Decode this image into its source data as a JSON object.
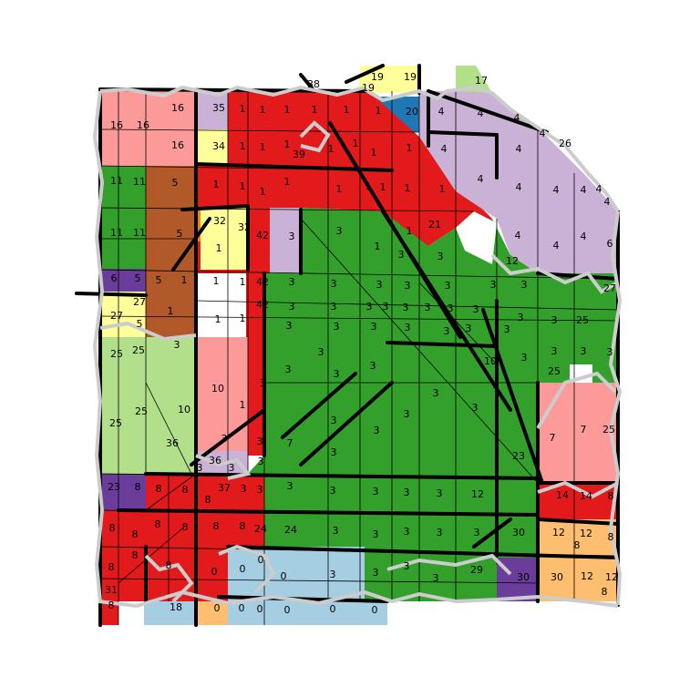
{
  "map": {
    "legend_colors": {
      "red": "#e31a1c",
      "green": "#33a02c",
      "light_green": "#b2df8a",
      "pink": "#fb9a99",
      "lavender": "#cab2d6",
      "yellow": "#ffff99",
      "brown": "#b15928",
      "orange": "#ff7f00",
      "light_orange": "#fdbf6f",
      "light_blue": "#a6cee3",
      "blue": "#1f78b4",
      "purple": "#6a3d9a",
      "boundary": "#cccccc"
    },
    "labels": [
      {
        "id": "l1",
        "text": "38"
      },
      {
        "id": "l2",
        "text": "19"
      },
      {
        "id": "l3",
        "text": "19"
      },
      {
        "id": "l4",
        "text": "19"
      },
      {
        "id": "l5",
        "text": "17"
      },
      {
        "id": "l6",
        "text": "16"
      },
      {
        "id": "l7",
        "text": "16"
      },
      {
        "id": "l8",
        "text": "16"
      },
      {
        "id": "l9",
        "text": "35"
      },
      {
        "id": "l10",
        "text": "1"
      },
      {
        "id": "l11",
        "text": "1"
      },
      {
        "id": "l12",
        "text": "1"
      },
      {
        "id": "l13",
        "text": "1"
      },
      {
        "id": "l14",
        "text": "1"
      },
      {
        "id": "l15",
        "text": "1"
      },
      {
        "id": "l16",
        "text": "20"
      },
      {
        "id": "l17",
        "text": "4"
      },
      {
        "id": "l18",
        "text": "4"
      },
      {
        "id": "l19",
        "text": "4"
      },
      {
        "id": "l20",
        "text": "4"
      },
      {
        "id": "l21",
        "text": "16"
      },
      {
        "id": "l22",
        "text": "34"
      },
      {
        "id": "l23",
        "text": "1"
      },
      {
        "id": "l24",
        "text": "1"
      },
      {
        "id": "l25",
        "text": "1"
      },
      {
        "id": "l26",
        "text": "39"
      },
      {
        "id": "l27",
        "text": "1"
      },
      {
        "id": "l28",
        "text": "1"
      },
      {
        "id": "l29",
        "text": "1"
      },
      {
        "id": "l30",
        "text": "1"
      },
      {
        "id": "l31",
        "text": "4"
      },
      {
        "id": "l32",
        "text": "4"
      },
      {
        "id": "l33",
        "text": "26"
      },
      {
        "id": "l34",
        "text": "11"
      },
      {
        "id": "l35",
        "text": "11"
      },
      {
        "id": "l36",
        "text": "5"
      },
      {
        "id": "l37",
        "text": "1"
      },
      {
        "id": "l38",
        "text": "1"
      },
      {
        "id": "l39",
        "text": "1"
      },
      {
        "id": "l40",
        "text": "1"
      },
      {
        "id": "l41",
        "text": "1"
      },
      {
        "id": "l42",
        "text": "1"
      },
      {
        "id": "l43",
        "text": "1"
      },
      {
        "id": "l44",
        "text": "1"
      },
      {
        "id": "l45",
        "text": "1"
      },
      {
        "id": "l46",
        "text": "4"
      },
      {
        "id": "l47",
        "text": "4"
      },
      {
        "id": "l48",
        "text": "4"
      },
      {
        "id": "l49",
        "text": "4"
      },
      {
        "id": "l50",
        "text": "4"
      },
      {
        "id": "l51",
        "text": "4"
      },
      {
        "id": "l52",
        "text": "11"
      },
      {
        "id": "l53",
        "text": "11"
      },
      {
        "id": "l54",
        "text": "5"
      },
      {
        "id": "l55",
        "text": "32"
      },
      {
        "id": "l56",
        "text": "32"
      },
      {
        "id": "l57",
        "text": "1"
      },
      {
        "id": "l58",
        "text": "42"
      },
      {
        "id": "l59",
        "text": "3"
      },
      {
        "id": "l60",
        "text": "3"
      },
      {
        "id": "l61",
        "text": "1"
      },
      {
        "id": "l62",
        "text": "1"
      },
      {
        "id": "l63",
        "text": "21"
      },
      {
        "id": "l64",
        "text": "4"
      },
      {
        "id": "l65",
        "text": "4"
      },
      {
        "id": "l66",
        "text": "4"
      },
      {
        "id": "l67",
        "text": "6"
      },
      {
        "id": "l68",
        "text": "6"
      },
      {
        "id": "l69",
        "text": "5"
      },
      {
        "id": "l70",
        "text": "5"
      },
      {
        "id": "l71",
        "text": "1"
      },
      {
        "id": "l72",
        "text": "1"
      },
      {
        "id": "l73",
        "text": "1"
      },
      {
        "id": "l74",
        "text": "42"
      },
      {
        "id": "l75",
        "text": "3"
      },
      {
        "id": "l76",
        "text": "3"
      },
      {
        "id": "l77",
        "text": "3"
      },
      {
        "id": "l78",
        "text": "3"
      },
      {
        "id": "l79",
        "text": "3"
      },
      {
        "id": "l80",
        "text": "3"
      },
      {
        "id": "l81",
        "text": "3"
      },
      {
        "id": "l82",
        "text": "27"
      },
      {
        "id": "l83",
        "text": "27"
      },
      {
        "id": "l84",
        "text": "27"
      },
      {
        "id": "l85",
        "text": "5"
      },
      {
        "id": "l86",
        "text": "1"
      },
      {
        "id": "l87",
        "text": "1"
      },
      {
        "id": "l88",
        "text": "1"
      },
      {
        "id": "l89",
        "text": "42"
      },
      {
        "id": "l90",
        "text": "3"
      },
      {
        "id": "l91",
        "text": "3"
      },
      {
        "id": "l92",
        "text": "3"
      },
      {
        "id": "l93",
        "text": "3"
      },
      {
        "id": "l94",
        "text": "3"
      },
      {
        "id": "l95",
        "text": "3"
      },
      {
        "id": "l96",
        "text": "3"
      },
      {
        "id": "l97",
        "text": "3"
      },
      {
        "id": "l98",
        "text": "3"
      },
      {
        "id": "l99",
        "text": "3"
      },
      {
        "id": "l100",
        "text": "25"
      },
      {
        "id": "l101",
        "text": "25"
      },
      {
        "id": "l102",
        "text": "25"
      },
      {
        "id": "l103",
        "text": "3"
      },
      {
        "id": "l104",
        "text": "3"
      },
      {
        "id": "l105",
        "text": "3"
      },
      {
        "id": "l106",
        "text": "3"
      },
      {
        "id": "l107",
        "text": "3"
      },
      {
        "id": "l108",
        "text": "3"
      },
      {
        "id": "l109",
        "text": "3"
      },
      {
        "id": "l110",
        "text": "3"
      },
      {
        "id": "l111",
        "text": "3"
      },
      {
        "id": "l112",
        "text": "3"
      },
      {
        "id": "l113",
        "text": "3"
      },
      {
        "id": "l114",
        "text": "3"
      },
      {
        "id": "l115",
        "text": "10"
      },
      {
        "id": "l116",
        "text": "10"
      },
      {
        "id": "l117",
        "text": "1"
      },
      {
        "id": "l118",
        "text": "3"
      },
      {
        "id": "l119",
        "text": "3"
      },
      {
        "id": "l120",
        "text": "3"
      },
      {
        "id": "l121",
        "text": "3"
      },
      {
        "id": "l122",
        "text": "3"
      },
      {
        "id": "l123",
        "text": "3"
      },
      {
        "id": "l124",
        "text": "25"
      },
      {
        "id": "l125",
        "text": "25"
      },
      {
        "id": "l126",
        "text": "25"
      },
      {
        "id": "l127",
        "text": "10"
      },
      {
        "id": "l128",
        "text": "3"
      },
      {
        "id": "l129",
        "text": "3"
      },
      {
        "id": "l130",
        "text": "3"
      },
      {
        "id": "l131",
        "text": "3"
      },
      {
        "id": "l132",
        "text": "3"
      },
      {
        "id": "l133",
        "text": "7"
      },
      {
        "id": "l134",
        "text": "7"
      },
      {
        "id": "l135",
        "text": "7"
      },
      {
        "id": "l136",
        "text": "25"
      },
      {
        "id": "l137",
        "text": "36"
      },
      {
        "id": "l138",
        "text": "36"
      },
      {
        "id": "l139",
        "text": "3"
      },
      {
        "id": "l140",
        "text": "3"
      },
      {
        "id": "l141",
        "text": "3"
      },
      {
        "id": "l142",
        "text": "3"
      },
      {
        "id": "l143",
        "text": "23"
      },
      {
        "id": "l144",
        "text": "23"
      },
      {
        "id": "l145",
        "text": "8"
      },
      {
        "id": "l146",
        "text": "8"
      },
      {
        "id": "l147",
        "text": "8"
      },
      {
        "id": "l148",
        "text": "8"
      },
      {
        "id": "l149",
        "text": "37"
      },
      {
        "id": "l150",
        "text": "3"
      },
      {
        "id": "l151",
        "text": "3"
      },
      {
        "id": "l152",
        "text": "3"
      },
      {
        "id": "l153",
        "text": "3"
      },
      {
        "id": "l154",
        "text": "3"
      },
      {
        "id": "l155",
        "text": "3"
      },
      {
        "id": "l156",
        "text": "3"
      },
      {
        "id": "l157",
        "text": "12"
      },
      {
        "id": "l158",
        "text": "14"
      },
      {
        "id": "l159",
        "text": "14"
      },
      {
        "id": "l160",
        "text": "8"
      },
      {
        "id": "l161",
        "text": "8"
      },
      {
        "id": "l162",
        "text": "8"
      },
      {
        "id": "l163",
        "text": "8"
      },
      {
        "id": "l164",
        "text": "8"
      },
      {
        "id": "l165",
        "text": "8"
      },
      {
        "id": "l166",
        "text": "8"
      },
      {
        "id": "l167",
        "text": "24"
      },
      {
        "id": "l168",
        "text": "24"
      },
      {
        "id": "l169",
        "text": "3"
      },
      {
        "id": "l170",
        "text": "3"
      },
      {
        "id": "l171",
        "text": "3"
      },
      {
        "id": "l172",
        "text": "3"
      },
      {
        "id": "l173",
        "text": "3"
      },
      {
        "id": "l174",
        "text": "30"
      },
      {
        "id": "l175",
        "text": "12"
      },
      {
        "id": "l176",
        "text": "12"
      },
      {
        "id": "l177",
        "text": "8"
      },
      {
        "id": "l178",
        "text": "8"
      },
      {
        "id": "l179",
        "text": "8"
      },
      {
        "id": "l180",
        "text": "8"
      },
      {
        "id": "l181",
        "text": "0"
      },
      {
        "id": "l182",
        "text": "0"
      },
      {
        "id": "l183",
        "text": "0"
      },
      {
        "id": "l184",
        "text": "0"
      },
      {
        "id": "l185",
        "text": "3"
      },
      {
        "id": "l186",
        "text": "3"
      },
      {
        "id": "l187",
        "text": "3"
      },
      {
        "id": "l188",
        "text": "3"
      },
      {
        "id": "l189",
        "text": "29"
      },
      {
        "id": "l190",
        "text": "30"
      },
      {
        "id": "l191",
        "text": "30"
      },
      {
        "id": "l192",
        "text": "12"
      },
      {
        "id": "l193",
        "text": "12"
      },
      {
        "id": "l194",
        "text": "8"
      },
      {
        "id": "l195",
        "text": "31"
      },
      {
        "id": "l196",
        "text": "18"
      },
      {
        "id": "l197",
        "text": "0"
      },
      {
        "id": "l198",
        "text": "0"
      },
      {
        "id": "l199",
        "text": "0"
      },
      {
        "id": "l200",
        "text": "0"
      },
      {
        "id": "l201",
        "text": "0"
      },
      {
        "id": "l202",
        "text": "8"
      },
      {
        "id": "l203",
        "text": "0"
      },
      {
        "id": "l204",
        "text": "8"
      },
      {
        "id": "l205",
        "text": "3"
      },
      {
        "id": "l206",
        "text": "3"
      },
      {
        "id": "l207",
        "text": "3"
      },
      {
        "id": "l208",
        "text": "12"
      }
    ]
  }
}
